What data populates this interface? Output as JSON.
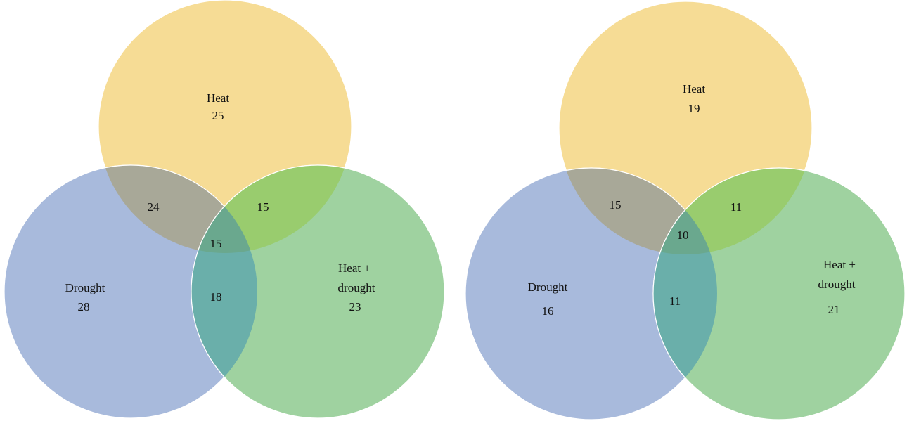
{
  "diagrams": [
    {
      "sets": [
        {
          "label_lines": [
            "Heat"
          ],
          "count": 25
        },
        {
          "label_lines": [
            "Drought"
          ],
          "count": 28
        },
        {
          "label_lines": [
            "Heat +",
            "drought"
          ],
          "count": 23
        }
      ],
      "overlaps": {
        "heat_and_drought": 24,
        "heat_and_combined": 15,
        "drought_and_combined": 18,
        "all_three": 15
      }
    },
    {
      "sets": [
        {
          "label_lines": [
            "Heat"
          ],
          "count": 19
        },
        {
          "label_lines": [
            "Drought"
          ],
          "count": 16
        },
        {
          "label_lines": [
            "Heat +",
            "drought"
          ],
          "count": 21
        }
      ],
      "overlaps": {
        "heat_and_drought": 15,
        "heat_and_combined": 11,
        "drought_and_combined": 11,
        "all_three": 10
      }
    }
  ]
}
